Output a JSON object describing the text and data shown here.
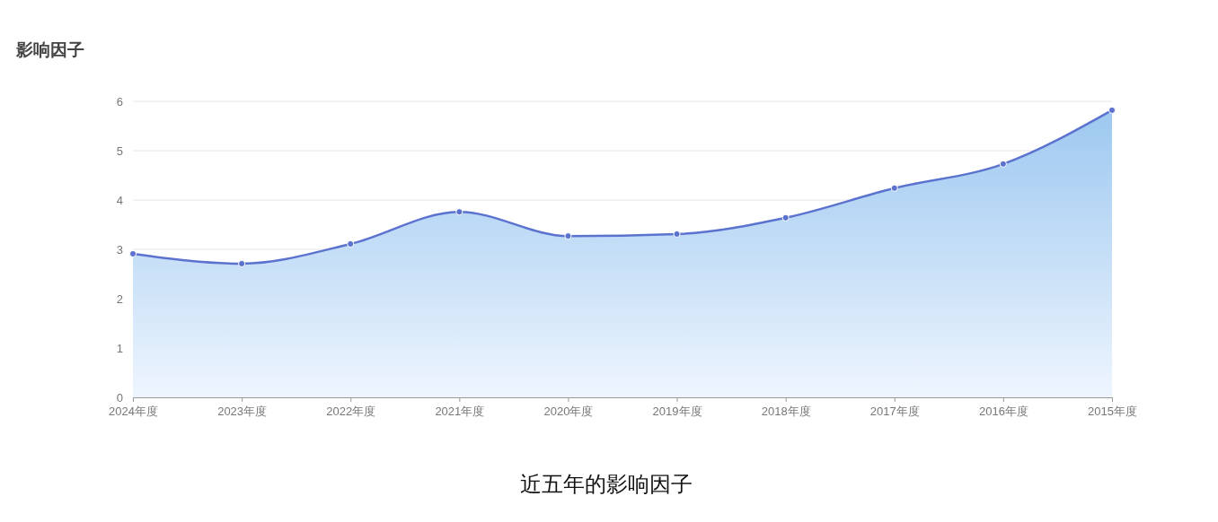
{
  "chart_data": {
    "type": "area",
    "title": "影响因子",
    "annotations": [
      "近五年的影响因子"
    ],
    "categories": [
      "2024年度",
      "2023年度",
      "2022年度",
      "2021年度",
      "2020年度",
      "2019年度",
      "2018年度",
      "2017年度",
      "2016年度",
      "2015年度"
    ],
    "series": [
      {
        "color": "#5b73cf",
        "values": [
          2.91,
          2.71,
          3.11,
          3.76,
          3.27,
          3.31,
          3.64,
          4.24,
          4.73,
          5.82
        ]
      }
    ],
    "ylim": [
      0,
      6
    ],
    "yticks": [
      0,
      1,
      2,
      3,
      4,
      5,
      6
    ],
    "grid": "y",
    "marker": "circle"
  }
}
